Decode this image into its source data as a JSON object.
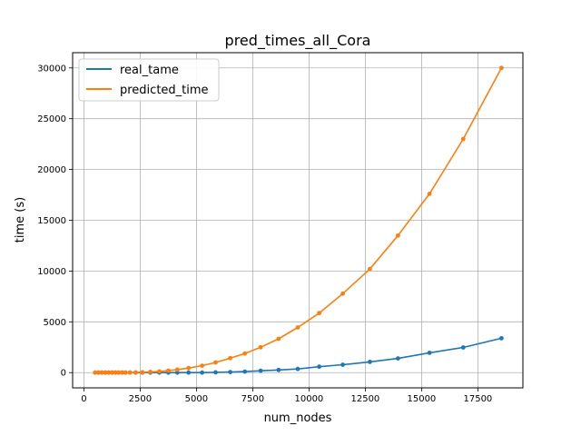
{
  "chart_data": {
    "type": "line",
    "title": "pred_times_all_Cora",
    "xlabel": "num_nodes",
    "ylabel": "time (s)",
    "xlim": [
      -500,
      19500
    ],
    "ylim": [
      -1500,
      31500
    ],
    "xticks": [
      0,
      2500,
      5000,
      7500,
      10000,
      12500,
      15000,
      17500
    ],
    "xtick_labels": [
      "0",
      "2500",
      "5000",
      "7500",
      "10000",
      "12500",
      "15000",
      "17500"
    ],
    "yticks": [
      0,
      5000,
      10000,
      15000,
      20000,
      25000,
      30000
    ],
    "ytick_labels": [
      "0",
      "5000",
      "10000",
      "15000",
      "20000",
      "25000",
      "30000"
    ],
    "grid": true,
    "legend_position": "top-left",
    "series": [
      {
        "name": "real_tame",
        "color": "#1f77b4",
        "x": [
          500,
          650,
          800,
          950,
          1100,
          1250,
          1400,
          1550,
          1700,
          1850,
          2050,
          2300,
          2600,
          2950,
          3350,
          3750,
          4150,
          4650,
          5250,
          5850,
          6500,
          7150,
          7850,
          8650,
          9500,
          10450,
          11500,
          12700,
          13950,
          15350,
          16850,
          18550
        ],
        "y": [
          0,
          0,
          0,
          0,
          0,
          0,
          0,
          0,
          0,
          0,
          0,
          0,
          0,
          0,
          0,
          0,
          0,
          0,
          0,
          30,
          60,
          100,
          180,
          260,
          360,
          580,
          780,
          1060,
          1400,
          1950,
          2480,
          3380
        ]
      },
      {
        "name": "predicted_time",
        "color": "#ff7f0e",
        "x": [
          500,
          650,
          800,
          950,
          1100,
          1250,
          1400,
          1550,
          1700,
          1850,
          2050,
          2300,
          2600,
          2950,
          3350,
          3750,
          4150,
          4650,
          5250,
          5850,
          6500,
          7150,
          7850,
          8650,
          9500,
          10450,
          11500,
          12700,
          13950,
          15350,
          16850,
          18550
        ],
        "y": [
          0,
          0,
          0,
          0,
          0,
          0,
          0,
          0,
          0,
          0,
          0,
          20,
          40,
          70,
          120,
          200,
          300,
          450,
          680,
          1000,
          1420,
          1880,
          2500,
          3330,
          4450,
          5860,
          7770,
          10200,
          13500,
          17600,
          23000,
          30000
        ]
      }
    ]
  }
}
